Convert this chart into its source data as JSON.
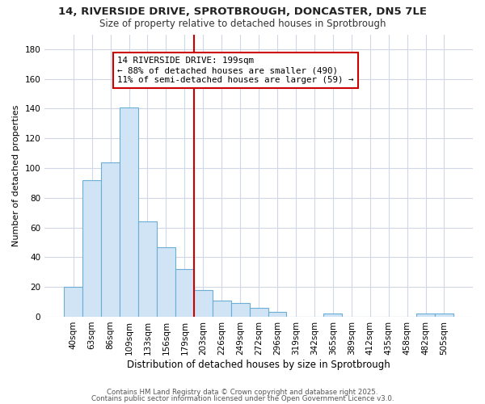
{
  "title_line1": "14, RIVERSIDE DRIVE, SPROTBROUGH, DONCASTER, DN5 7LE",
  "title_line2": "Size of property relative to detached houses in Sprotbrough",
  "xlabel": "Distribution of detached houses by size in Sprotbrough",
  "ylabel": "Number of detached properties",
  "categories": [
    "40sqm",
    "63sqm",
    "86sqm",
    "109sqm",
    "133sqm",
    "156sqm",
    "179sqm",
    "203sqm",
    "226sqm",
    "249sqm",
    "272sqm",
    "296sqm",
    "319sqm",
    "342sqm",
    "365sqm",
    "389sqm",
    "412sqm",
    "435sqm",
    "458sqm",
    "482sqm",
    "505sqm"
  ],
  "values": [
    20,
    92,
    104,
    141,
    64,
    47,
    32,
    18,
    11,
    9,
    6,
    3,
    0,
    0,
    2,
    0,
    0,
    0,
    0,
    2,
    2
  ],
  "bar_color": "#d0e4f5",
  "bar_edge_color": "#6aaed6",
  "highlight_bar_index": 7,
  "annotation_title": "14 RIVERSIDE DRIVE: 199sqm",
  "annotation_line1": "← 88% of detached houses are smaller (490)",
  "annotation_line2": "11% of semi-detached houses are larger (59) →",
  "annotation_box_color": "#ffffff",
  "annotation_border_color": "#cc0000",
  "footer_line1": "Contains HM Land Registry data © Crown copyright and database right 2025.",
  "footer_line2": "Contains public sector information licensed under the Open Government Licence v3.0.",
  "ylim": [
    0,
    190
  ],
  "yticks": [
    0,
    20,
    40,
    60,
    80,
    100,
    120,
    140,
    160,
    180
  ],
  "background_color": "#ffffff",
  "plot_background_color": "#ffffff",
  "grid_color": "#d0d8e8",
  "figsize": [
    6.0,
    5.0
  ],
  "dpi": 100
}
